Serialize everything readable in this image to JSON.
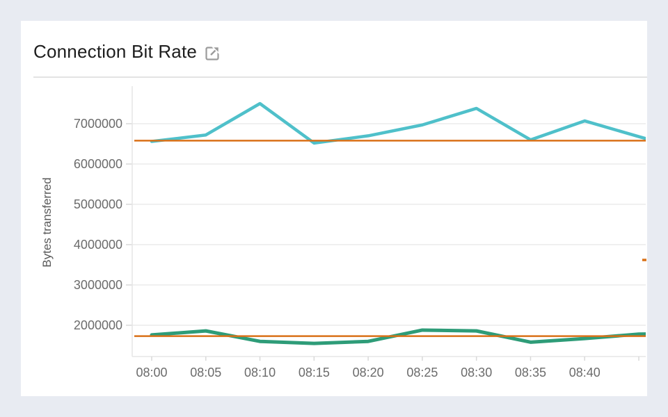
{
  "page": {
    "background": "#e8ebf2",
    "card_background": "#ffffff"
  },
  "header": {
    "title": "Connection Bit Rate",
    "external_link_icon": "open-in-new-window",
    "icon_color": "#9b9b9b"
  },
  "chart_data": {
    "type": "line",
    "title": "Connection Bit Rate",
    "xlabel": "",
    "ylabel": "Bytes transferred",
    "x_tick_labels": [
      "08:00",
      "08:05",
      "08:10",
      "08:15",
      "08:20",
      "08:25",
      "08:30",
      "08:35",
      "08:40",
      ""
    ],
    "y_tick_values": [
      2000000,
      3000000,
      4000000,
      5000000,
      6000000,
      7000000
    ],
    "ylim": [
      1240000,
      7780000
    ],
    "grid": true,
    "legend_position": "none",
    "series": [
      {
        "name": "bytes-transferred-high",
        "color": "#4fc0ca",
        "stroke_width": 4.5,
        "values": [
          6560000,
          6720000,
          7500000,
          6520000,
          6700000,
          6970000,
          7380000,
          6600000,
          7070000,
          6680000
        ],
        "next_offscreen_value": 6300000
      },
      {
        "name": "bytes-transferred-low",
        "color": "#2e9c78",
        "stroke_width": 5,
        "values": [
          1760000,
          1860000,
          1600000,
          1550000,
          1600000,
          1880000,
          1860000,
          1580000,
          1670000,
          1780000
        ],
        "next_offscreen_value": 1800000
      }
    ],
    "thresholds": [
      {
        "name": "upper-threshold",
        "value": 6580000,
        "color": "#d97118",
        "stroke_width": 2.5
      },
      {
        "name": "lower-threshold",
        "value": 1730000,
        "color": "#d97118",
        "stroke_width": 2.5
      }
    ],
    "edge_marker": {
      "name": "clipped-threshold-marker",
      "value": 3620000,
      "color": "#d97118"
    },
    "colors": {
      "grid": "#ececec",
      "axis": "#e6e6e6",
      "tick": "#d9d9d9",
      "tick_text": "#6b6b6b"
    }
  }
}
